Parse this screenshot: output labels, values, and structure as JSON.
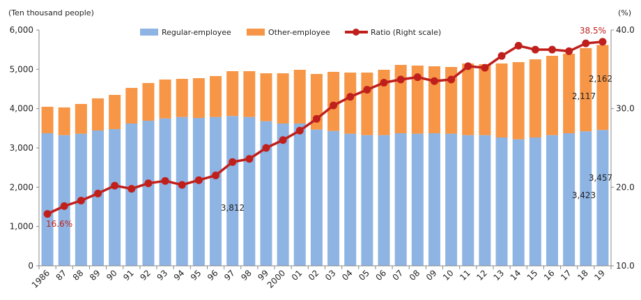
{
  "chart_data": {
    "type": "bar+line",
    "stacked": true,
    "y_left_unit": "(Ten thousand people)",
    "y_right_unit": "(%)",
    "ylim_left": [
      0,
      6000
    ],
    "ylim_right": [
      10.0,
      40.0
    ],
    "y_left_ticks": [
      "0",
      "1,000",
      "2,000",
      "3,000",
      "4,000",
      "5,000",
      "6,000"
    ],
    "y_right_ticks": [
      "10.0",
      "20.0",
      "30.0",
      "40.0"
    ],
    "legend_position": "top",
    "categories": [
      "1986",
      "87",
      "88",
      "89",
      "90",
      "91",
      "92",
      "93",
      "94",
      "95",
      "96",
      "97",
      "98",
      "99",
      "2000",
      "01",
      "02",
      "03",
      "04",
      "05",
      "06",
      "07",
      "08",
      "09",
      "10",
      "11",
      "12",
      "13",
      "14",
      "15",
      "16",
      "17",
      "18",
      "19"
    ],
    "series": [
      {
        "name": "Regular-employee",
        "kind": "bar",
        "color": "#8eb4e3",
        "values": [
          3373,
          3325,
          3361,
          3444,
          3479,
          3621,
          3692,
          3751,
          3787,
          3763,
          3787,
          3812,
          3787,
          3680,
          3621,
          3621,
          3467,
          3432,
          3361,
          3325,
          3325,
          3373,
          3361,
          3373,
          3361,
          3325,
          3325,
          3266,
          3219,
          3266,
          3325,
          3373,
          3423,
          3457
        ]
      },
      {
        "name": "Other-employee",
        "kind": "bar",
        "color": "#f79646",
        "values": [
          674,
          705,
          757,
          816,
          870,
          906,
          959,
          989,
          970,
          1012,
          1041,
          1141,
          1166,
          1219,
          1278,
          1367,
          1415,
          1503,
          1556,
          1592,
          1663,
          1739,
          1734,
          1704,
          1698,
          1823,
          1805,
          1882,
          1964,
          1988,
          2018,
          2023,
          2117,
          2162
        ]
      },
      {
        "name": "Ratio (Right scale)",
        "kind": "line",
        "axis": "right",
        "color": "#c0201c",
        "values": [
          16.6,
          17.6,
          18.3,
          19.2,
          20.2,
          19.8,
          20.5,
          20.8,
          20.3,
          20.9,
          21.5,
          23.2,
          23.6,
          25.0,
          26.0,
          27.2,
          28.7,
          30.4,
          31.5,
          32.4,
          33.3,
          33.7,
          34.0,
          33.5,
          33.7,
          35.4,
          35.2,
          36.7,
          38.0,
          37.5,
          37.5,
          37.3,
          38.3,
          38.5
        ]
      }
    ],
    "annotations": {
      "ratio_first": "16.6%",
      "ratio_last": "38.5%",
      "regular_1997": "3,812",
      "other_2018": "2,117",
      "other_2019": "2,162",
      "regular_2018": "3,423",
      "regular_2019": "3,457"
    }
  }
}
